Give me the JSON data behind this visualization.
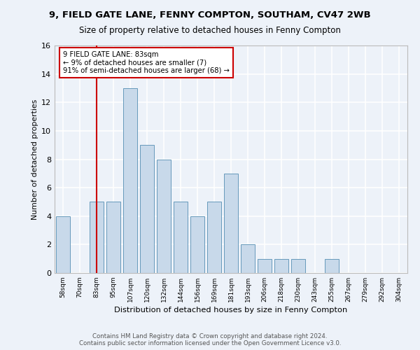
{
  "title1": "9, FIELD GATE LANE, FENNY COMPTON, SOUTHAM, CV47 2WB",
  "title2": "Size of property relative to detached houses in Fenny Compton",
  "xlabel": "Distribution of detached houses by size in Fenny Compton",
  "ylabel": "Number of detached properties",
  "categories": [
    "58sqm",
    "70sqm",
    "83sqm",
    "95sqm",
    "107sqm",
    "120sqm",
    "132sqm",
    "144sqm",
    "156sqm",
    "169sqm",
    "181sqm",
    "193sqm",
    "206sqm",
    "218sqm",
    "230sqm",
    "243sqm",
    "255sqm",
    "267sqm",
    "279sqm",
    "292sqm",
    "304sqm"
  ],
  "values": [
    4,
    0,
    5,
    5,
    13,
    9,
    8,
    5,
    4,
    5,
    7,
    2,
    1,
    1,
    1,
    0,
    1,
    0,
    0,
    0,
    0
  ],
  "bar_color": "#c8d9ea",
  "bar_edge_color": "#6699bb",
  "vline_x": 2,
  "vline_color": "#cc0000",
  "annotation_text": "9 FIELD GATE LANE: 83sqm\n← 9% of detached houses are smaller (7)\n91% of semi-detached houses are larger (68) →",
  "annotation_box_color": "#ffffff",
  "annotation_border_color": "#cc0000",
  "ylim": [
    0,
    16
  ],
  "yticks": [
    0,
    2,
    4,
    6,
    8,
    10,
    12,
    14,
    16
  ],
  "footer": "Contains HM Land Registry data © Crown copyright and database right 2024.\nContains public sector information licensed under the Open Government Licence v3.0.",
  "bg_color": "#edf2f9",
  "plot_bg_color": "#edf2f9",
  "grid_color": "#ffffff",
  "title1_fontsize": 9.5,
  "title2_fontsize": 8.5
}
